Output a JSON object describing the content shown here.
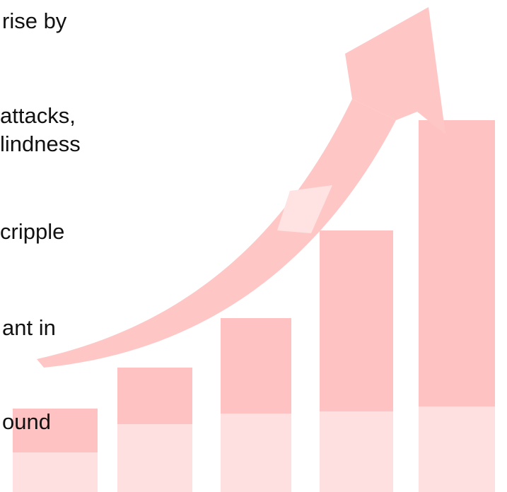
{
  "slide": {
    "text_lines": [
      "rise by",
      "attacks,",
      "lindness",
      "cripple",
      "ant in",
      "ound"
    ]
  },
  "graphic": {
    "icon": "growth-bar-chart-with-rising-arrow",
    "colors": {
      "bar": "#ffc2c2",
      "bar_light": "#ffe0e0",
      "arrow": "#ffc6c6"
    }
  }
}
